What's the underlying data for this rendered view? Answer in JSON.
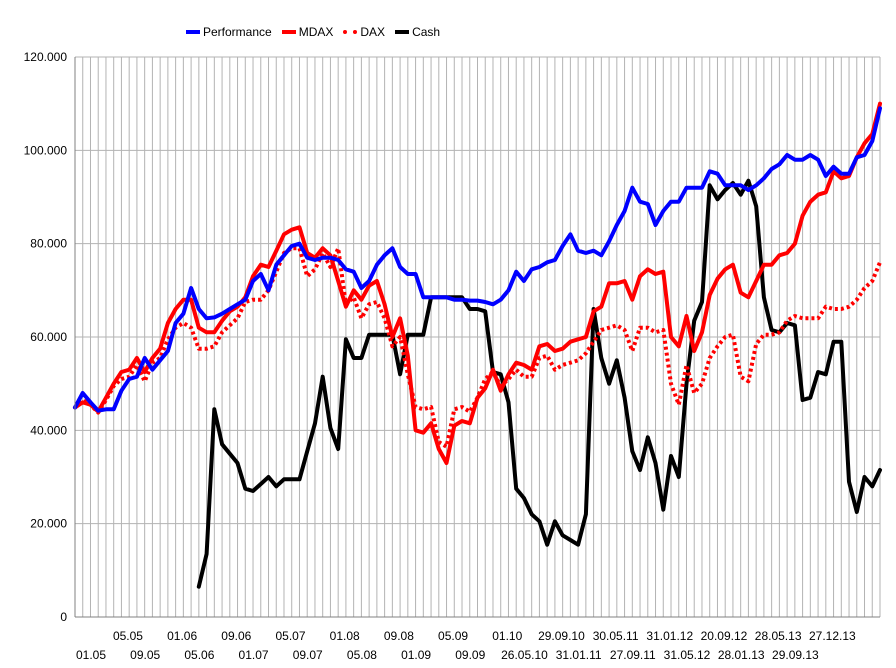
{
  "chart_data": {
    "type": "line",
    "title": "",
    "xlabel": "",
    "ylabel": "",
    "ylim": [
      0,
      120000
    ],
    "y_ticks": [
      "0",
      "20.000",
      "40.000",
      "60.000",
      "80.000",
      "100.000",
      "120.000"
    ],
    "y_tick_values": [
      0,
      20000,
      40000,
      60000,
      80000,
      100000,
      120000
    ],
    "grid": "vertical-gridlines-per-point",
    "legend_position": "top",
    "n_points": 105,
    "x_labels_upper": [
      {
        "i": 4,
        "label": "05.05"
      },
      {
        "i": 11,
        "label": "01.06"
      },
      {
        "i": 18,
        "label": "09.06"
      },
      {
        "i": 25,
        "label": "05.07"
      },
      {
        "i": 32,
        "label": "01.08"
      },
      {
        "i": 39,
        "label": "09.08"
      },
      {
        "i": 46,
        "label": "05.09"
      },
      {
        "i": 53,
        "label": "01.10"
      },
      {
        "i": 60,
        "label": "29.09.10"
      },
      {
        "i": 67,
        "label": "30.05.11"
      },
      {
        "i": 74,
        "label": "31.01.12"
      },
      {
        "i": 81,
        "label": "20.09.12"
      },
      {
        "i": 88,
        "label": "28.05.13"
      },
      {
        "i": 95,
        "label": "27.12.13"
      }
    ],
    "x_labels_lower": [
      {
        "i": 0,
        "label": "01.05"
      },
      {
        "i": 7,
        "label": "09.05"
      },
      {
        "i": 14,
        "label": "05.06"
      },
      {
        "i": 21,
        "label": "01.07"
      },
      {
        "i": 28,
        "label": "09.07"
      },
      {
        "i": 35,
        "label": "05.08"
      },
      {
        "i": 42,
        "label": "01.09"
      },
      {
        "i": 49,
        "label": "09.09"
      },
      {
        "i": 56,
        "label": "26.05.10"
      },
      {
        "i": 63,
        "label": "31.01.11"
      },
      {
        "i": 70,
        "label": "27.09.11"
      },
      {
        "i": 77,
        "label": "31.05.12"
      },
      {
        "i": 84,
        "label": "28.01.13"
      },
      {
        "i": 91,
        "label": "29.09.13"
      }
    ],
    "series": [
      {
        "name": "Performance",
        "color": "#0000ff",
        "style": "solid",
        "values": [
          44900,
          48000,
          46000,
          44200,
          44500,
          44500,
          48500,
          51000,
          51500,
          55500,
          53000,
          55000,
          57000,
          63000,
          65000,
          70500,
          66000,
          64000,
          64200,
          65000,
          66000,
          67000,
          68000,
          72000,
          73500,
          70000,
          75500,
          77500,
          79500,
          80000,
          77000,
          76500,
          77000,
          77000,
          76500,
          74500,
          74000,
          70500,
          72000,
          75500,
          77500,
          79000,
          75000,
          73500,
          73500,
          68500,
          68500,
          68500,
          68500,
          68000,
          68000,
          67800,
          67800,
          67500,
          67000,
          68000,
          70000,
          74000,
          72000,
          74500,
          75000,
          76000,
          76500,
          79500,
          82000,
          78500,
          78000,
          78500,
          77500,
          80500,
          84000,
          87000,
          92000,
          89000,
          88500,
          84000,
          87000,
          89000,
          89000,
          92000,
          92000,
          92000,
          95500,
          95000,
          92500,
          92500,
          92500,
          91500,
          92500,
          94000,
          96000,
          97000,
          99000,
          98000,
          98000,
          99000,
          98000,
          94500,
          96500,
          95000,
          95000,
          98500,
          99000,
          102000,
          109000
        ]
      },
      {
        "name": "MDAX",
        "color": "#ff0000",
        "style": "solid",
        "values": [
          44900,
          46000,
          45500,
          44000,
          47000,
          50000,
          52500,
          53000,
          55500,
          52500,
          55500,
          57500,
          63000,
          66000,
          68000,
          68000,
          62000,
          61000,
          61000,
          63500,
          65500,
          66500,
          68500,
          73000,
          75500,
          75000,
          78500,
          82000,
          83000,
          83500,
          78000,
          77000,
          79000,
          77500,
          72000,
          66500,
          70000,
          68000,
          71000,
          72000,
          67000,
          60000,
          64000,
          56000,
          40000,
          39500,
          41500,
          36000,
          33000,
          41000,
          42000,
          41500,
          47000,
          49000,
          53000,
          48500,
          52000,
          54500,
          54000,
          53000,
          58000,
          58500,
          57000,
          57500,
          59000,
          59500,
          60000,
          65500,
          66500,
          71500,
          71500,
          72000,
          68000,
          73000,
          74500,
          73500,
          74000,
          60000,
          58000,
          64500,
          57000,
          61000,
          69000,
          72500,
          74500,
          75500,
          69500,
          68500,
          72000,
          75500,
          75500,
          77500,
          78000,
          80000,
          86000,
          89000,
          90500,
          91000,
          95500,
          94000,
          94500,
          98500,
          101500,
          103500,
          110000
        ]
      },
      {
        "name": "DAX",
        "color": "#ff0000",
        "style": "dotted",
        "values": [
          44900,
          46500,
          45500,
          43800,
          46500,
          49500,
          51000,
          51500,
          54000,
          50500,
          54500,
          55500,
          59500,
          62000,
          63000,
          62000,
          57500,
          57500,
          58000,
          61000,
          62500,
          64000,
          67500,
          68000,
          68000,
          70000,
          74000,
          78000,
          79000,
          79000,
          73000,
          74500,
          78000,
          75000,
          79000,
          67000,
          68500,
          64000,
          67000,
          67500,
          64000,
          58000,
          60000,
          52000,
          45000,
          44500,
          45000,
          37500,
          36500,
          44500,
          45000,
          44000,
          47000,
          51000,
          52500,
          49500,
          51000,
          53000,
          51500,
          51500,
          55500,
          56000,
          53000,
          54000,
          54500,
          55000,
          56500,
          59000,
          61500,
          62000,
          62500,
          61500,
          57000,
          62000,
          62000,
          61000,
          61500,
          50000,
          45500,
          54000,
          48000,
          50000,
          55500,
          58000,
          60000,
          60500,
          51500,
          50500,
          58500,
          60500,
          60500,
          61000,
          63500,
          64500,
          64000,
          64000,
          64000,
          66500,
          66000,
          66000,
          66500,
          68000,
          70500,
          72000,
          76000
        ]
      },
      {
        "name": "Cash",
        "color": "#000000",
        "style": "solid",
        "values": [
          null,
          null,
          null,
          null,
          null,
          null,
          null,
          null,
          null,
          null,
          null,
          null,
          null,
          null,
          null,
          null,
          6500,
          13500,
          44500,
          37000,
          35000,
          33000,
          27500,
          27000,
          28500,
          30000,
          28000,
          29500,
          29500,
          29500,
          35500,
          41500,
          51500,
          40500,
          36000,
          59500,
          55500,
          55500,
          60500,
          60500,
          60500,
          60500,
          52000,
          60500,
          60500,
          60500,
          68500,
          68500,
          68500,
          68500,
          68500,
          66000,
          66000,
          65500,
          52500,
          52000,
          46000,
          27500,
          25500,
          22000,
          20500,
          15500,
          20500,
          17500,
          16500,
          15500,
          22000,
          66000,
          55500,
          50000,
          55000,
          47000,
          35500,
          31500,
          38500,
          33000,
          23000,
          34500,
          30000,
          50000,
          63500,
          67500,
          92500,
          89500,
          91500,
          93000,
          90500,
          93500,
          88000,
          68500,
          61500,
          61000,
          63000,
          62500,
          46500,
          47000,
          52500,
          52000,
          59000,
          59000,
          29000,
          22500,
          30000,
          28000,
          31500
        ]
      }
    ]
  }
}
